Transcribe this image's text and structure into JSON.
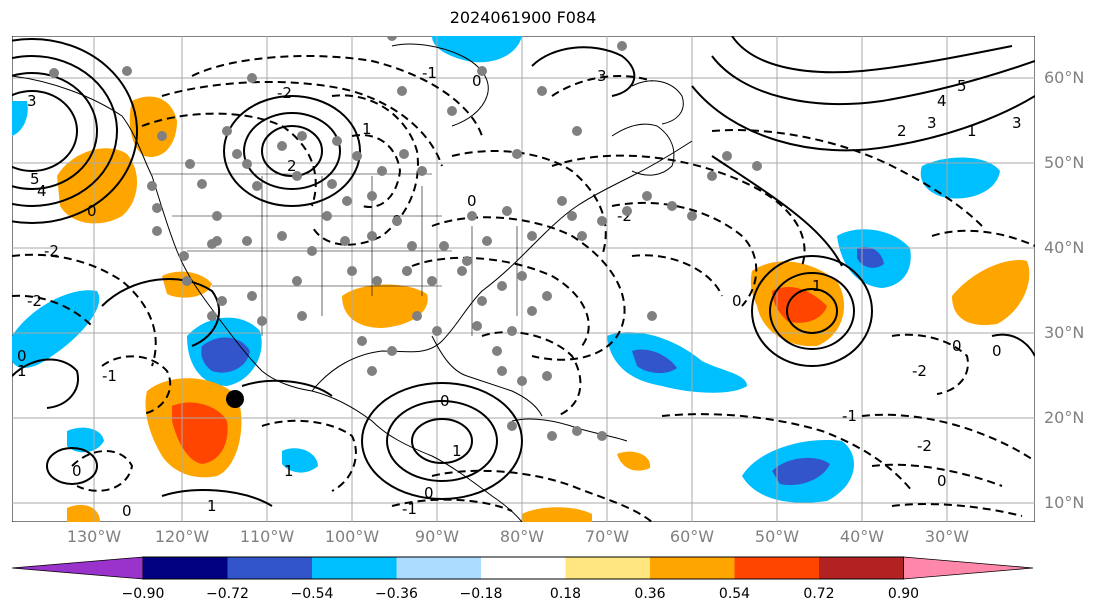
{
  "title": "2024061900 F084",
  "map": {
    "lat_labels": [
      "60°N",
      "50°N",
      "40°N",
      "30°N",
      "20°N",
      "10°N"
    ],
    "lon_labels": [
      "130°W",
      "120°W",
      "110°W",
      "100°W",
      "90°W",
      "80°W",
      "70°W",
      "60°W",
      "50°W",
      "40°W",
      "30°W"
    ],
    "contour_labels": [
      "0",
      "-1",
      "-2",
      "1",
      "2",
      "3",
      "4",
      "5"
    ]
  },
  "colorbar": {
    "ticks": [
      "−0.90",
      "−0.72",
      "−0.54",
      "−0.36",
      "−0.18",
      "0.18",
      "0.36",
      "0.54",
      "0.72",
      "0.90"
    ],
    "colors": [
      "#9933cc",
      "#000080",
      "#3355cc",
      "#00bfff",
      "#aaddff",
      "#ffffff",
      "#ffe680",
      "#ffa500",
      "#ff4500",
      "#b22222",
      "#ff88aa"
    ]
  }
}
